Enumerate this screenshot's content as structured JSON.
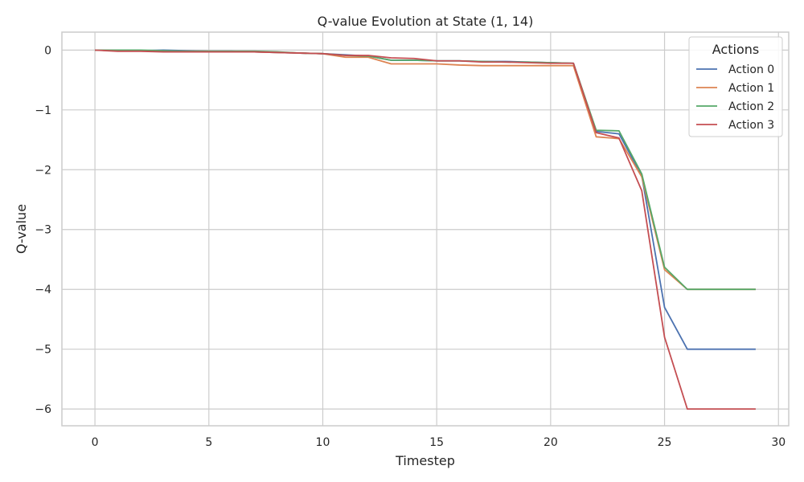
{
  "chart_data": {
    "type": "line",
    "title": "Q-value Evolution at State (1, 14)",
    "xlabel": "Timestep",
    "ylabel": "Q-value",
    "xlim": [
      -1.45,
      30.45
    ],
    "ylim": [
      -6.28,
      0.3
    ],
    "x_ticks": [
      0,
      5,
      10,
      15,
      20,
      25,
      30
    ],
    "y_ticks": [
      0,
      -1,
      -2,
      -3,
      -4,
      -5,
      -6
    ],
    "x_tick_labels": [
      "0",
      "5",
      "10",
      "15",
      "20",
      "25",
      "30"
    ],
    "y_tick_labels": [
      "0",
      "−1",
      "−2",
      "−3",
      "−4",
      "−5",
      "−6"
    ],
    "grid": true,
    "legend": {
      "title": "Actions",
      "placement": "top-right"
    },
    "x": [
      0,
      1,
      2,
      3,
      4,
      5,
      6,
      7,
      8,
      9,
      10,
      11,
      12,
      13,
      14,
      15,
      16,
      17,
      18,
      19,
      20,
      21,
      22,
      23,
      24,
      25,
      26,
      27,
      28,
      29
    ],
    "series": [
      {
        "name": "Action 0",
        "color": "#4c72b0",
        "values": [
          0.0,
          -0.01,
          -0.01,
          0.0,
          -0.01,
          -0.02,
          -0.02,
          -0.03,
          -0.04,
          -0.05,
          -0.06,
          -0.08,
          -0.1,
          -0.17,
          -0.17,
          -0.18,
          -0.18,
          -0.19,
          -0.19,
          -0.2,
          -0.21,
          -0.22,
          -1.36,
          -1.4,
          -2.1,
          -4.3,
          -5.0,
          -5.0,
          -5.0,
          -5.0
        ]
      },
      {
        "name": "Action 1",
        "color": "#dd8452",
        "values": [
          0.0,
          -0.01,
          -0.01,
          -0.02,
          -0.02,
          -0.02,
          -0.03,
          -0.03,
          -0.04,
          -0.05,
          -0.06,
          -0.12,
          -0.12,
          -0.23,
          -0.23,
          -0.23,
          -0.25,
          -0.26,
          -0.26,
          -0.26,
          -0.26,
          -0.26,
          -1.45,
          -1.48,
          -2.12,
          -3.67,
          -4.0,
          -4.0,
          -4.0,
          -4.0
        ]
      },
      {
        "name": "Action 2",
        "color": "#55a868",
        "values": [
          0.0,
          0.0,
          0.0,
          -0.01,
          -0.02,
          -0.02,
          -0.02,
          -0.02,
          -0.03,
          -0.05,
          -0.06,
          -0.09,
          -0.1,
          -0.17,
          -0.17,
          -0.18,
          -0.18,
          -0.19,
          -0.2,
          -0.2,
          -0.21,
          -0.22,
          -1.34,
          -1.35,
          -2.07,
          -3.63,
          -4.0,
          -4.0,
          -4.0,
          -4.0
        ]
      },
      {
        "name": "Action 3",
        "color": "#c44e52",
        "values": [
          0.0,
          -0.02,
          -0.02,
          -0.03,
          -0.03,
          -0.03,
          -0.03,
          -0.03,
          -0.04,
          -0.05,
          -0.06,
          -0.09,
          -0.09,
          -0.13,
          -0.14,
          -0.18,
          -0.18,
          -0.2,
          -0.2,
          -0.21,
          -0.22,
          -0.22,
          -1.38,
          -1.47,
          -2.35,
          -4.8,
          -6.0,
          -6.0,
          -6.0,
          -6.0
        ]
      }
    ]
  }
}
